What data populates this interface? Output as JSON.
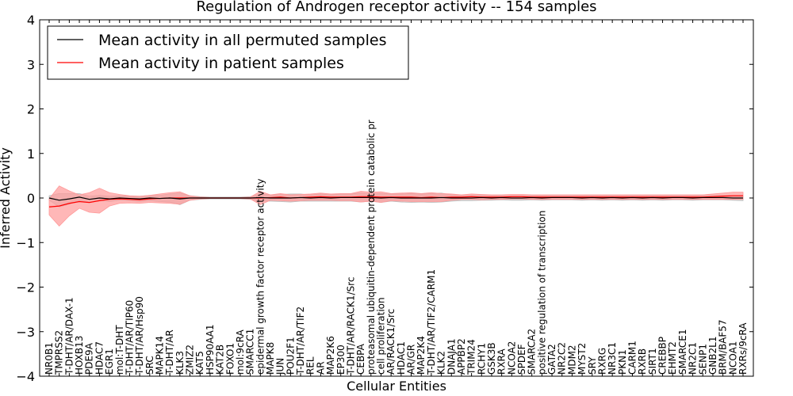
{
  "chart_data": {
    "type": "line",
    "title": "Regulation of Androgen receptor activity -- 154 samples",
    "xlabel": "Cellular Entities",
    "ylabel": "Inferred Activity",
    "ylim": [
      -4,
      4
    ],
    "yticks": [
      -4,
      -3,
      -2,
      -1,
      0,
      1,
      2,
      3,
      4
    ],
    "ytick_labels": [
      "−4",
      "−3",
      "−2",
      "−1",
      "0",
      "1",
      "2",
      "3",
      "4"
    ],
    "legend_position": "top-left",
    "categories": [
      "NR0B1",
      "TMPRSS2",
      "T-DHT/AR/DAX-1",
      "HOXB13",
      "PDE9A",
      "HDAC7",
      "EGR1",
      "mol:T-DHT",
      "T-DHT/AR/TIP60",
      "T-DHT/AR/Hsp90",
      "SRC",
      "MAPK14",
      "T-DHT/AR",
      "KLK3",
      "ZMIZ2",
      "KAT5",
      "HSP90AA1",
      "KAT2B",
      "FOXO1",
      "mol:9cRA",
      "SMARCC1",
      "epidermal growth factor receptor activity",
      "MAPK8",
      "JUN",
      "POU2F1",
      "T-DHT/AR/TIF2",
      "REL",
      "AR",
      "MAP2K6",
      "EP300",
      "T-DHT/AR/RACK1/Src",
      "CEBPA",
      "proteasomal ubiquitin-dependent protein catabolic pr",
      "cell proliferation",
      "AR/RACK1/Src",
      "HDAC1",
      "AR/GR",
      "MAP2K4",
      "T-DHT/AR/TIF2/CARM1",
      "KLK2",
      "DNAJA1",
      "APPBP2",
      "TRIM24",
      "RCHY1",
      "GSK3B",
      "RXRA",
      "NCOA2",
      "SPDEF",
      "SMARCA2",
      "positive regulation of transcription",
      "GATA2",
      "NR2C2",
      "MDM2",
      "MYST2",
      "SRY",
      "RXRG",
      "NR3C1",
      "PKN1",
      "CARM1",
      "RXRB",
      "SIRT1",
      "CREBBP",
      "EHMT2",
      "SMARCE1",
      "NR2C1",
      "SENP1",
      "GNB2L1",
      "BRM/BAF57",
      "NCOA1",
      "RXRs/9cRA"
    ],
    "series": [
      {
        "name": "Mean activity in all permuted samples",
        "color": "#000000",
        "band_color": "#bbbbbb",
        "values": [
          0.0,
          -0.05,
          -0.02,
          0.02,
          -0.03,
          0.0,
          -0.02,
          0.0,
          -0.01,
          -0.02,
          0.0,
          -0.01,
          0.0,
          -0.02,
          0.0,
          0.0,
          0.0,
          0.0,
          0.0,
          0.0,
          0.0,
          0.01,
          0.0,
          0.0,
          0.0,
          0.01,
          0.0,
          0.01,
          0.0,
          0.01,
          0.01,
          0.01,
          0.01,
          0.0,
          0.01,
          0.0,
          0.0,
          0.0,
          0.0,
          0.01,
          0.0,
          0.0,
          0.0,
          0.01,
          0.0,
          0.01,
          0.0,
          0.0,
          0.01,
          0.0,
          0.01,
          0.01,
          0.01,
          0.0,
          0.01,
          0.0,
          0.01,
          0.0,
          0.01,
          0.0,
          0.01,
          0.0,
          0.01,
          0.01,
          0.0,
          0.01,
          0.01,
          0.01,
          0.0,
          0.0
        ],
        "band": [
          0.05,
          0.15,
          0.12,
          0.08,
          0.07,
          0.06,
          0.06,
          0.05,
          0.05,
          0.06,
          0.06,
          0.07,
          0.09,
          0.13,
          0.05,
          0.03,
          0.02,
          0.02,
          0.02,
          0.02,
          0.03,
          0.08,
          0.07,
          0.08,
          0.09,
          0.08,
          0.07,
          0.08,
          0.07,
          0.08,
          0.08,
          0.1,
          0.08,
          0.1,
          0.08,
          0.09,
          0.1,
          0.09,
          0.1,
          0.1,
          0.07,
          0.06,
          0.06,
          0.06,
          0.05,
          0.05,
          0.05,
          0.05,
          0.05,
          0.05,
          0.05,
          0.05,
          0.05,
          0.05,
          0.05,
          0.05,
          0.05,
          0.05,
          0.05,
          0.05,
          0.05,
          0.05,
          0.05,
          0.05,
          0.05,
          0.05,
          0.05,
          0.05,
          0.05,
          0.06
        ]
      },
      {
        "name": "Mean activity in patient samples",
        "color": "#ff0000",
        "band_color": "#ff9999",
        "values": [
          -0.2,
          -0.18,
          -0.12,
          -0.08,
          -0.1,
          -0.06,
          -0.03,
          -0.02,
          -0.03,
          -0.04,
          -0.02,
          -0.01,
          0.0,
          0.0,
          0.0,
          0.0,
          0.0,
          0.0,
          0.0,
          0.0,
          0.0,
          0.0,
          0.01,
          0.02,
          0.0,
          0.01,
          0.02,
          0.03,
          0.02,
          0.02,
          0.02,
          0.03,
          0.03,
          0.02,
          0.02,
          0.02,
          0.02,
          0.01,
          0.02,
          0.01,
          0.02,
          0.02,
          0.03,
          0.02,
          0.02,
          0.02,
          0.03,
          0.03,
          0.02,
          0.02,
          0.02,
          0.02,
          0.02,
          0.02,
          0.02,
          0.02,
          0.02,
          0.02,
          0.02,
          0.02,
          0.02,
          0.02,
          0.02,
          0.02,
          0.02,
          0.02,
          0.03,
          0.04,
          0.05,
          0.05
        ],
        "band": [
          0.18,
          0.45,
          0.28,
          0.15,
          0.22,
          0.28,
          0.15,
          0.1,
          0.08,
          0.08,
          0.08,
          0.1,
          0.12,
          0.14,
          0.05,
          0.02,
          0.01,
          0.01,
          0.01,
          0.01,
          0.02,
          0.15,
          0.06,
          0.08,
          0.07,
          0.07,
          0.07,
          0.08,
          0.07,
          0.08,
          0.08,
          0.12,
          0.1,
          0.12,
          0.08,
          0.09,
          0.1,
          0.09,
          0.1,
          0.09,
          0.07,
          0.05,
          0.06,
          0.06,
          0.05,
          0.05,
          0.05,
          0.05,
          0.05,
          0.05,
          0.05,
          0.05,
          0.05,
          0.05,
          0.05,
          0.05,
          0.05,
          0.05,
          0.05,
          0.05,
          0.05,
          0.05,
          0.05,
          0.05,
          0.05,
          0.05,
          0.06,
          0.07,
          0.08,
          0.08
        ]
      }
    ]
  }
}
